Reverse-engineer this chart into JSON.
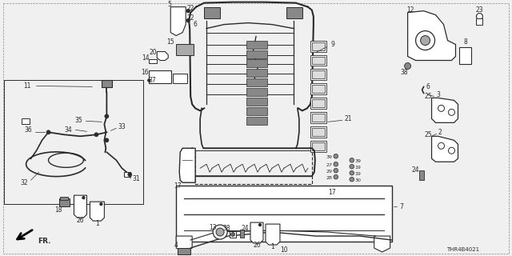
{
  "bg_color": "#f5f5f5",
  "line_color": "#2a2a2a",
  "diagram_code": "THR4B4021",
  "gray_fill": "#cccccc",
  "dark_fill": "#555555",
  "white_fill": "#ffffff",
  "label_fontsize": 5.5,
  "title_fontsize": 5.0,
  "lw_thick": 1.4,
  "lw_med": 0.9,
  "lw_thin": 0.6
}
